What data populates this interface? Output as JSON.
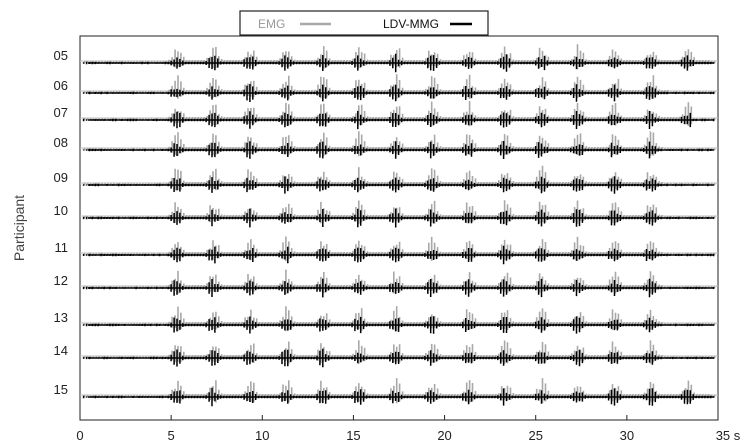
{
  "chart_data": {
    "type": "line",
    "title": "",
    "xlabel": "",
    "ylabel": "Participant",
    "x_unit": "s",
    "xlim": [
      0,
      35
    ],
    "x_ticks": [
      0,
      5,
      10,
      15,
      20,
      25,
      30,
      35
    ],
    "x_tick_labels": [
      "0",
      "5",
      "10",
      "15",
      "20",
      "25",
      "30",
      "35 s"
    ],
    "categories": [
      "05",
      "06",
      "07",
      "08",
      "09",
      "10",
      "11",
      "12",
      "13",
      "14",
      "15"
    ],
    "activity_window_s": [
      [
        4.8,
        34.5
      ],
      [
        4.8,
        32.3
      ],
      [
        4.8,
        33.5
      ],
      [
        4.8,
        32.0
      ],
      [
        4.8,
        32.0
      ],
      [
        4.8,
        32.0
      ],
      [
        4.8,
        32.0
      ],
      [
        4.8,
        32.0
      ],
      [
        4.8,
        32.0
      ],
      [
        4.8,
        32.0
      ],
      [
        4.8,
        34.5
      ]
    ],
    "legend_position": "top",
    "grid": false,
    "series": [
      {
        "name": "EMG",
        "color": "#a8a8a8"
      },
      {
        "name": "LDV-MMG",
        "color": "#000000"
      }
    ]
  }
}
